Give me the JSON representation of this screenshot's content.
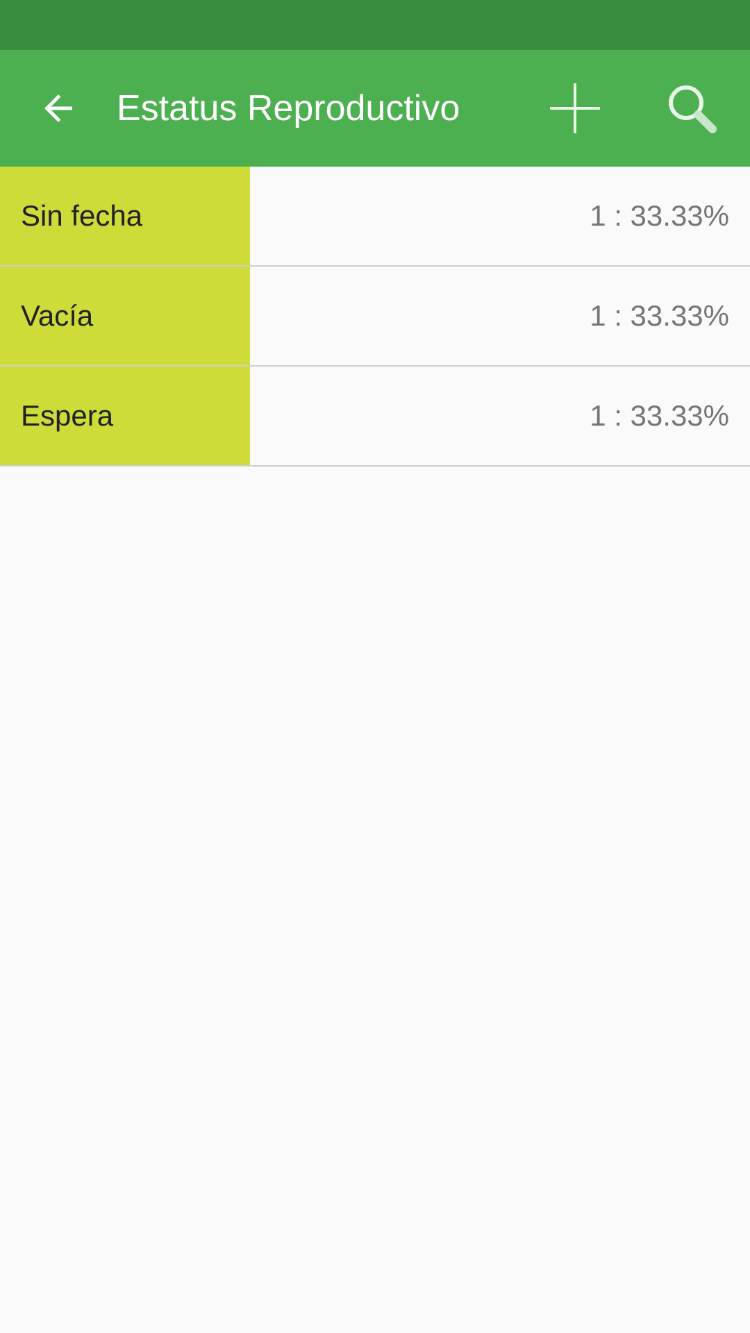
{
  "colors": {
    "status_bar": "#388E3C",
    "app_bar": "#4CAF50",
    "row_bar": "#CDDC39"
  },
  "app_bar": {
    "title": "Estatus Reproductivo",
    "back_icon": "arrow-back-icon",
    "add_icon": "plus-icon",
    "search_icon": "search-icon"
  },
  "list": {
    "rows": [
      {
        "label": "Sin fecha",
        "value": "1 : 33.33%",
        "fraction": 0.3333
      },
      {
        "label": "Vacía",
        "value": "1 : 33.33%",
        "fraction": 0.3333
      },
      {
        "label": "Espera",
        "value": "1 : 33.33%",
        "fraction": 0.3333
      }
    ]
  }
}
